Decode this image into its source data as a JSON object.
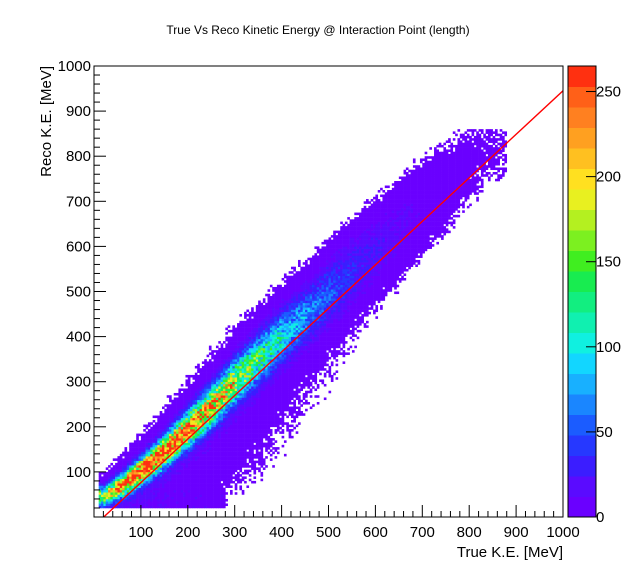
{
  "chart_data": {
    "type": "heatmap",
    "title": "True Vs Reco Kinetic Energy @ Interaction Point (length)",
    "xlabel": "True K.E. [MeV]",
    "ylabel": "Reco K.E. [MeV]",
    "xlim": [
      0,
      1000
    ],
    "ylim": [
      0,
      1000
    ],
    "x_ticks": [
      "100",
      "200",
      "300",
      "400",
      "500",
      "600",
      "700",
      "800",
      "900",
      "1000"
    ],
    "y_ticks": [
      "100",
      "200",
      "300",
      "400",
      "500",
      "600",
      "700",
      "800",
      "900",
      "1000"
    ],
    "colorbar": {
      "range": [
        0,
        265
      ],
      "ticks": [
        "0",
        "50",
        "100",
        "150",
        "200",
        "250"
      ],
      "palette": [
        "#6a00ff",
        "#5a0bff",
        "#3b1dff",
        "#2638ff",
        "#1b5cff",
        "#1a86ff",
        "#18b0ff",
        "#12d6ff",
        "#10f0e0",
        "#10f0b0",
        "#12ee80",
        "#18ec50",
        "#40ee20",
        "#7cf020",
        "#b4f020",
        "#e8f020",
        "#ffe020",
        "#ffc020",
        "#ffa020",
        "#ff8020",
        "#ff6018",
        "#ff3010"
      ]
    },
    "series": [
      {
        "kind": "fit-line",
        "color": "#ff0000",
        "points": [
          [
            0,
            -20
          ],
          [
            1000,
            945
          ]
        ]
      }
    ],
    "density_ridge": {
      "description_points": [
        [
          20,
          45,
          150
        ],
        [
          60,
          70,
          230
        ],
        [
          100,
          100,
          260
        ],
        [
          150,
          145,
          250
        ],
        [
          200,
          195,
          230
        ],
        [
          250,
          245,
          200
        ],
        [
          300,
          300,
          160
        ],
        [
          350,
          350,
          120
        ],
        [
          400,
          400,
          90
        ],
        [
          450,
          445,
          60
        ],
        [
          500,
          495,
          45
        ],
        [
          550,
          545,
          30
        ],
        [
          600,
          590,
          20
        ],
        [
          650,
          640,
          12
        ],
        [
          700,
          690,
          8
        ],
        [
          750,
          730,
          5
        ],
        [
          800,
          780,
          3
        ],
        [
          850,
          820,
          2
        ]
      ]
    }
  }
}
